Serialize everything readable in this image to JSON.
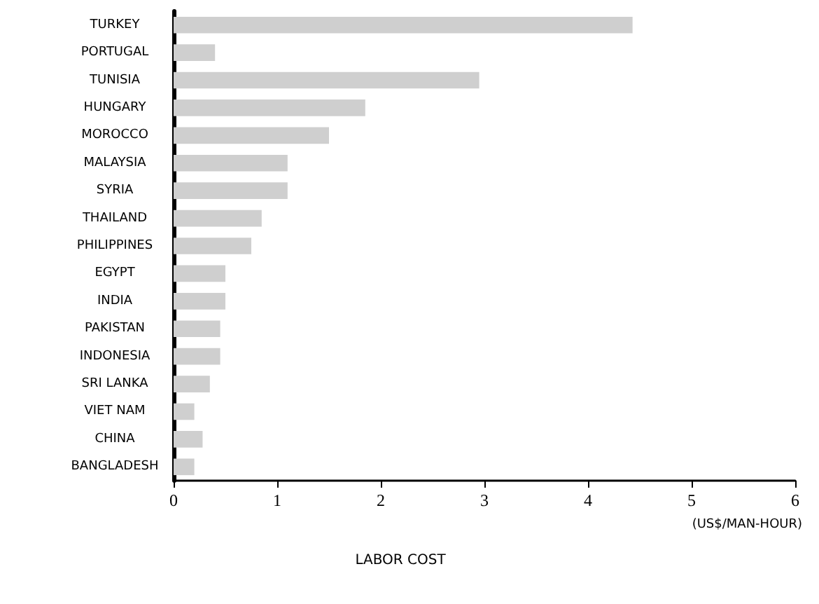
{
  "chart_data": {
    "type": "bar",
    "orientation": "horizontal",
    "xlabel": "LABOR COST",
    "annotations": [
      "(US$/MAN-HOUR)"
    ],
    "categories": [
      "TURKEY",
      "PORTUGAL",
      "TUNISIA",
      "HUNGARY",
      "MOROCCO",
      "MALAYSIA",
      "SYRIA",
      "THAILAND",
      "PHILIPPINES",
      "EGYPT",
      "INDIA",
      "PAKISTAN",
      "INDONESIA",
      "SRI LANKA",
      "VIET NAM",
      "CHINA",
      "BANGLADESH"
    ],
    "values": [
      4.43,
      0.4,
      2.95,
      1.85,
      1.5,
      1.1,
      1.1,
      0.85,
      0.75,
      0.5,
      0.5,
      0.45,
      0.45,
      0.35,
      0.2,
      0.28,
      0.2
    ],
    "color": "#cfcfcf",
    "xlim": [
      0,
      6
    ],
    "xticks": [
      0,
      1,
      2,
      3,
      4,
      5,
      6
    ],
    "grid": false
  }
}
